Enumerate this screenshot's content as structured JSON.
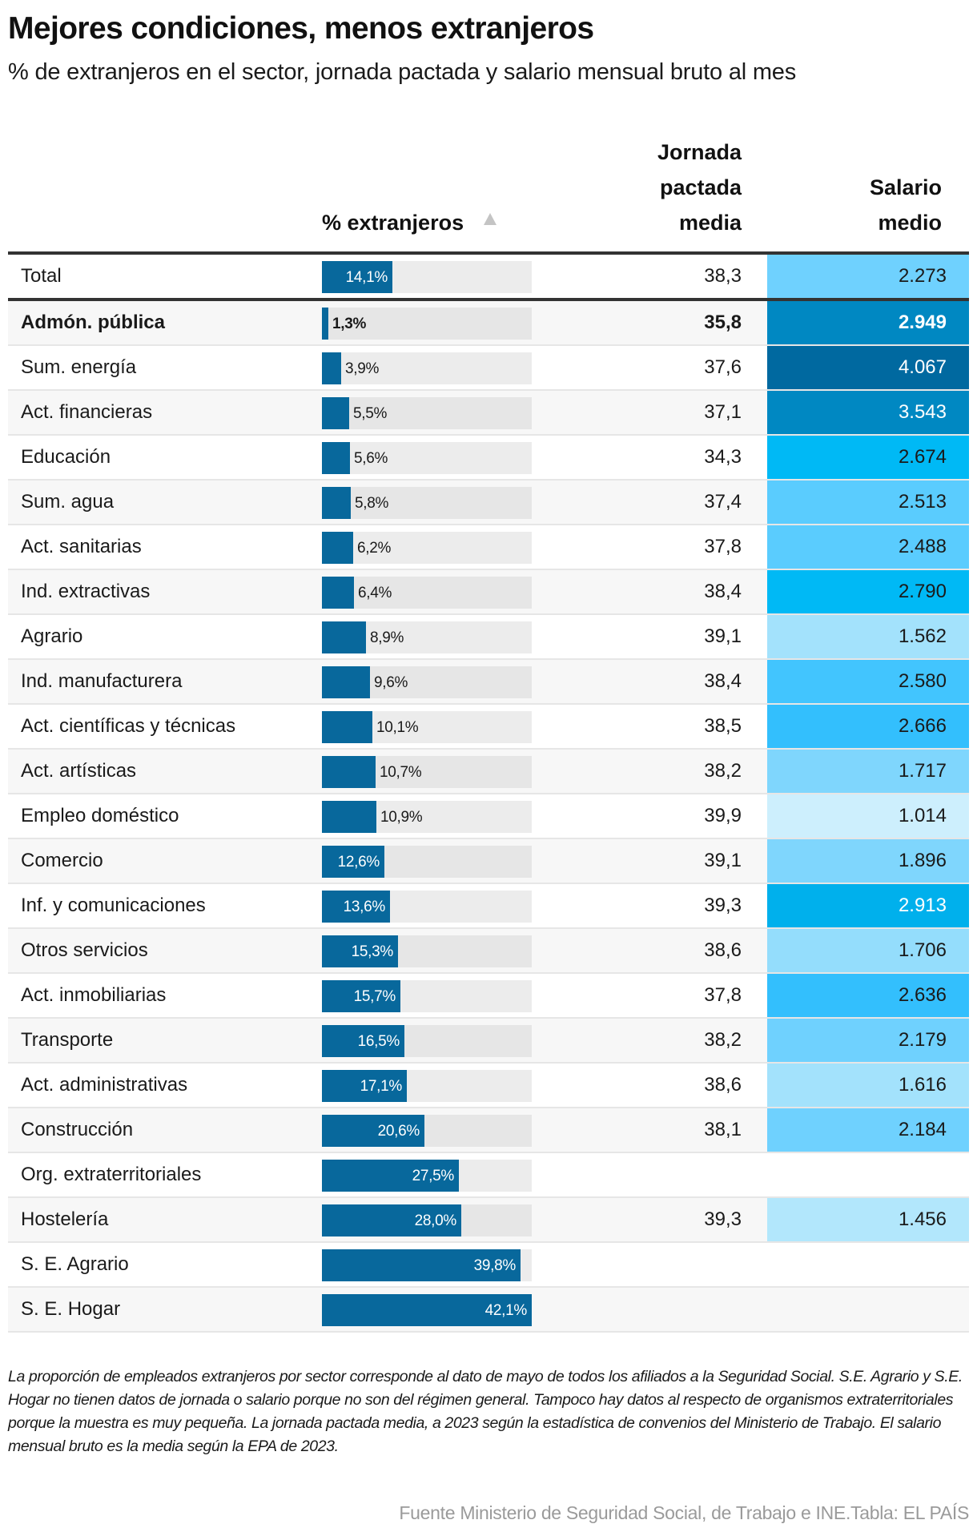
{
  "header": {
    "title": "Mejores condiciones, menos extranjeros",
    "subtitle": "% de extranjeros en el sector, jornada pactada y salario mensual bruto al mes"
  },
  "columns": {
    "pct": "% extranjeros",
    "sort_icon": "triangle-up-icon",
    "jornada": [
      "Jornada",
      "pactada",
      "media"
    ],
    "salario": [
      "Salario",
      "medio"
    ]
  },
  "colors": {
    "bar": "#08689c",
    "track": "#ececec",
    "rule": "#333333",
    "salary_scale": [
      "#cdeffd",
      "#b2e7fc",
      "#a3e2fc",
      "#94ddfc",
      "#7fd6fd",
      "#6fd1fe",
      "#5accfe",
      "#42c5fe",
      "#33bffd",
      "#00b9f5",
      "#00b0ec",
      "#0088c2",
      "#0069a0"
    ]
  },
  "chart_data": {
    "type": "table",
    "title": "Mejores condiciones, menos extranjeros",
    "subtitle": "% de extranjeros en el sector, jornada pactada y salario mensual bruto al mes",
    "bar_max": 42.1,
    "total": {
      "sector": "Total",
      "pct": 14.1,
      "pct_label": "14,1%",
      "jornada": "38,3",
      "salario": "2.273",
      "salario_value": 2273
    },
    "rows": [
      {
        "sector": "Admón. pública",
        "pct": 1.3,
        "pct_label": "1,3%",
        "jornada": "35,8",
        "salario": "2.949",
        "salario_value": 2949,
        "bold": true
      },
      {
        "sector": "Sum. energía",
        "pct": 3.9,
        "pct_label": "3,9%",
        "jornada": "37,6",
        "salario": "4.067",
        "salario_value": 4067
      },
      {
        "sector": "Act. financieras",
        "pct": 5.5,
        "pct_label": "5,5%",
        "jornada": "37,1",
        "salario": "3.543",
        "salario_value": 3543
      },
      {
        "sector": "Educación",
        "pct": 5.6,
        "pct_label": "5,6%",
        "jornada": "34,3",
        "salario": "2.674",
        "salario_value": 2674
      },
      {
        "sector": "Sum. agua",
        "pct": 5.8,
        "pct_label": "5,8%",
        "jornada": "37,4",
        "salario": "2.513",
        "salario_value": 2513
      },
      {
        "sector": "Act. sanitarias",
        "pct": 6.2,
        "pct_label": "6,2%",
        "jornada": "37,8",
        "salario": "2.488",
        "salario_value": 2488
      },
      {
        "sector": "Ind. extractivas",
        "pct": 6.4,
        "pct_label": "6,4%",
        "jornada": "38,4",
        "salario": "2.790",
        "salario_value": 2790
      },
      {
        "sector": "Agrario",
        "pct": 8.9,
        "pct_label": "8,9%",
        "jornada": "39,1",
        "salario": "1.562",
        "salario_value": 1562
      },
      {
        "sector": "Ind. manufacturera",
        "pct": 9.6,
        "pct_label": "9,6%",
        "jornada": "38,4",
        "salario": "2.580",
        "salario_value": 2580
      },
      {
        "sector": "Act. científicas y técnicas",
        "pct": 10.1,
        "pct_label": "10,1%",
        "jornada": "38,5",
        "salario": "2.666",
        "salario_value": 2666
      },
      {
        "sector": "Act. artísticas",
        "pct": 10.7,
        "pct_label": "10,7%",
        "jornada": "38,2",
        "salario": "1.717",
        "salario_value": 1717
      },
      {
        "sector": "Empleo doméstico",
        "pct": 10.9,
        "pct_label": "10,9%",
        "jornada": "39,9",
        "salario": "1.014",
        "salario_value": 1014
      },
      {
        "sector": "Comercio",
        "pct": 12.6,
        "pct_label": "12,6%",
        "jornada": "39,1",
        "salario": "1.896",
        "salario_value": 1896
      },
      {
        "sector": "Inf. y comunicaciones",
        "pct": 13.6,
        "pct_label": "13,6%",
        "jornada": "39,3",
        "salario": "2.913",
        "salario_value": 2913
      },
      {
        "sector": "Otros servicios",
        "pct": 15.3,
        "pct_label": "15,3%",
        "jornada": "38,6",
        "salario": "1.706",
        "salario_value": 1706
      },
      {
        "sector": "Act. inmobiliarias",
        "pct": 15.7,
        "pct_label": "15,7%",
        "jornada": "37,8",
        "salario": "2.636",
        "salario_value": 2636
      },
      {
        "sector": "Transporte",
        "pct": 16.5,
        "pct_label": "16,5%",
        "jornada": "38,2",
        "salario": "2.179",
        "salario_value": 2179
      },
      {
        "sector": "Act. administrativas",
        "pct": 17.1,
        "pct_label": "17,1%",
        "jornada": "38,6",
        "salario": "1.616",
        "salario_value": 1616
      },
      {
        "sector": "Construcción",
        "pct": 20.6,
        "pct_label": "20,6%",
        "jornada": "38,1",
        "salario": "2.184",
        "salario_value": 2184
      },
      {
        "sector": "Org. extraterritoriales",
        "pct": 27.5,
        "pct_label": "27,5%",
        "jornada": "",
        "salario": "",
        "salario_value": null
      },
      {
        "sector": "Hostelería",
        "pct": 28.0,
        "pct_label": "28,0%",
        "jornada": "39,3",
        "salario": "1.456",
        "salario_value": 1456
      },
      {
        "sector": "S. E. Agrario",
        "pct": 39.8,
        "pct_label": "39,8%",
        "jornada": "",
        "salario": "",
        "salario_value": null
      },
      {
        "sector": "S. E. Hogar",
        "pct": 42.1,
        "pct_label": "42,1%",
        "jornada": "",
        "salario": "",
        "salario_value": null
      }
    ]
  },
  "footer": {
    "note": "La proporción de empleados extranjeros por sector corresponde al dato de mayo de todos los afiliados a la Seguridad Social. S.E. Agrario y S.E. Hogar no tienen datos de jornada o salario porque no son del régimen general. Tampoco hay datos al respecto de organismos extraterritoriales porque la muestra es muy pequeña. La jornada pactada media, a 2023 según la estadística de convenios del Ministerio de Trabajo. El salario mensual bruto es la media según la EPA de 2023.",
    "source": "Fuente Ministerio de Seguridad Social, de Trabajo e INE.Tabla: EL PAÍS"
  }
}
